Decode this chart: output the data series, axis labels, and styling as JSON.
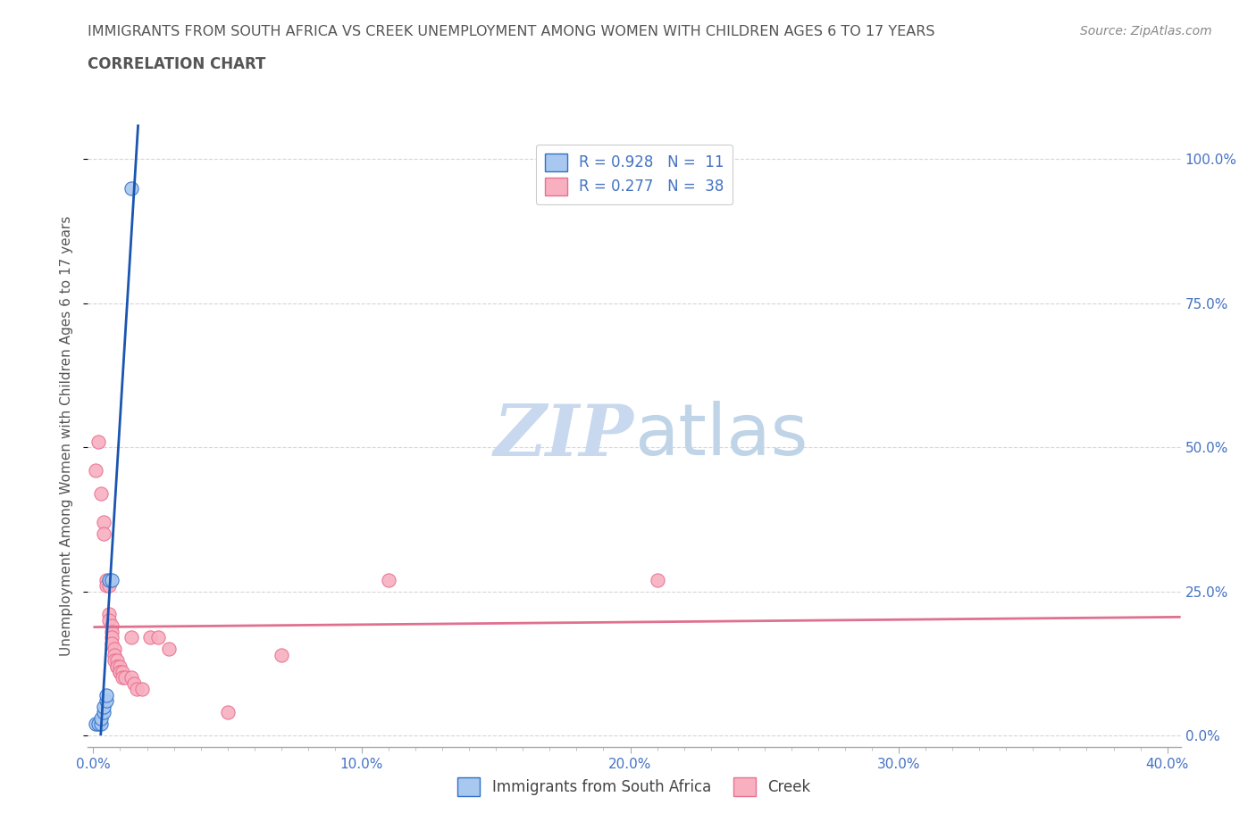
{
  "title_line1": "IMMIGRANTS FROM SOUTH AFRICA VS CREEK UNEMPLOYMENT AMONG WOMEN WITH CHILDREN AGES 6 TO 17 YEARS",
  "title_line2": "CORRELATION CHART",
  "source": "Source: ZipAtlas.com",
  "ylabel": "Unemployment Among Women with Children Ages 6 to 17 years",
  "xmin": -0.002,
  "xmax": 0.405,
  "ymin": -0.02,
  "ymax": 1.06,
  "xtick_labels": [
    "0.0%",
    "",
    "",
    "",
    "",
    "10.0%",
    "",
    "",
    "",
    "",
    "20.0%",
    "",
    "",
    "",
    "",
    "30.0%",
    "",
    "",
    "",
    "",
    "40.0%"
  ],
  "xtick_values": [
    0.0,
    0.02,
    0.04,
    0.06,
    0.08,
    0.1,
    0.12,
    0.14,
    0.16,
    0.18,
    0.2,
    0.22,
    0.24,
    0.26,
    0.28,
    0.3,
    0.32,
    0.34,
    0.36,
    0.38,
    0.4
  ],
  "xtick_major_labels": [
    "0.0%",
    "10.0%",
    "20.0%",
    "30.0%",
    "40.0%"
  ],
  "xtick_major_values": [
    0.0,
    0.1,
    0.2,
    0.3,
    0.4
  ],
  "ytick_labels": [
    "100.0%",
    "75.0%",
    "50.0%",
    "25.0%",
    "0.0%"
  ],
  "ytick_values": [
    1.0,
    0.75,
    0.5,
    0.25,
    0.0
  ],
  "grid_color": "#cccccc",
  "background_color": "#ffffff",
  "watermark_zip": "ZIP",
  "watermark_atlas": "atlas",
  "watermark_color": "#c8d8ee",
  "series1_name": "Immigrants from South Africa",
  "series1_fill": "#a8c8f0",
  "series1_edge": "#3070c8",
  "series1_line": "#1a55b0",
  "series1_R": 0.928,
  "series1_N": 11,
  "series2_name": "Creek",
  "series2_fill": "#f8b0c0",
  "series2_edge": "#e87090",
  "series2_line": "#e07090",
  "series2_R": 0.277,
  "series2_N": 38,
  "series1_points": [
    [
      0.001,
      0.02
    ],
    [
      0.002,
      0.02
    ],
    [
      0.003,
      0.02
    ],
    [
      0.003,
      0.03
    ],
    [
      0.004,
      0.04
    ],
    [
      0.004,
      0.05
    ],
    [
      0.005,
      0.06
    ],
    [
      0.005,
      0.07
    ],
    [
      0.006,
      0.27
    ],
    [
      0.007,
      0.27
    ],
    [
      0.014,
      0.95
    ]
  ],
  "series2_points": [
    [
      0.001,
      0.46
    ],
    [
      0.002,
      0.51
    ],
    [
      0.003,
      0.42
    ],
    [
      0.004,
      0.37
    ],
    [
      0.004,
      0.35
    ],
    [
      0.005,
      0.27
    ],
    [
      0.005,
      0.26
    ],
    [
      0.006,
      0.26
    ],
    [
      0.006,
      0.21
    ],
    [
      0.006,
      0.2
    ],
    [
      0.007,
      0.19
    ],
    [
      0.007,
      0.18
    ],
    [
      0.007,
      0.17
    ],
    [
      0.007,
      0.16
    ],
    [
      0.008,
      0.15
    ],
    [
      0.008,
      0.14
    ],
    [
      0.008,
      0.13
    ],
    [
      0.009,
      0.13
    ],
    [
      0.009,
      0.12
    ],
    [
      0.009,
      0.12
    ],
    [
      0.01,
      0.12
    ],
    [
      0.01,
      0.11
    ],
    [
      0.01,
      0.11
    ],
    [
      0.011,
      0.11
    ],
    [
      0.011,
      0.1
    ],
    [
      0.012,
      0.1
    ],
    [
      0.014,
      0.17
    ],
    [
      0.014,
      0.1
    ],
    [
      0.015,
      0.09
    ],
    [
      0.016,
      0.08
    ],
    [
      0.018,
      0.08
    ],
    [
      0.021,
      0.17
    ],
    [
      0.024,
      0.17
    ],
    [
      0.028,
      0.15
    ],
    [
      0.05,
      0.04
    ],
    [
      0.07,
      0.14
    ],
    [
      0.11,
      0.27
    ],
    [
      0.21,
      0.27
    ]
  ]
}
